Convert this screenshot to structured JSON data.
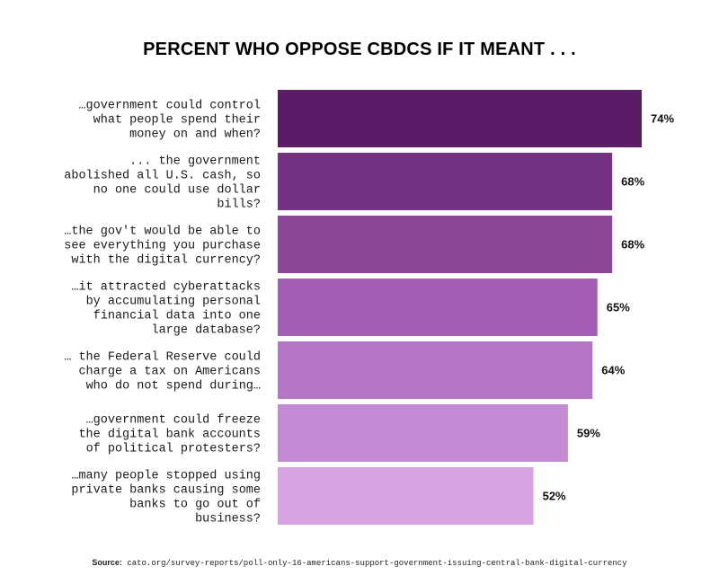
{
  "chart_data": {
    "type": "bar",
    "orientation": "horizontal",
    "title": "PERCENT WHO OPPOSE CBDCS IF IT MEANT . . .",
    "categories": [
      [
        "…government could control",
        "what people spend their",
        "money on and when?"
      ],
      [
        "... the government",
        "abolished all U.S. cash, so",
        "no one could use dollar",
        "bills?"
      ],
      [
        "…the gov't would be able to",
        "see everything you purchase",
        "with the digital currency?"
      ],
      [
        "…it attracted cyberattacks",
        "by accumulating personal",
        "financial data into one",
        "large database?"
      ],
      [
        "… the Federal Reserve could",
        "charge a tax on Americans",
        "who do not spend during…"
      ],
      [
        "…government could freeze",
        "the digital bank accounts",
        "of political protesters?"
      ],
      [
        "…many people stopped using",
        "private banks causing some",
        "banks to go out of",
        "business?"
      ]
    ],
    "values": [
      74,
      68,
      68,
      65,
      64,
      59,
      52
    ],
    "value_labels": [
      "74%",
      "68%",
      "68%",
      "65%",
      "64%",
      "59%",
      "52%"
    ],
    "colors": [
      "#5a1c66",
      "#743282",
      "#8a4897",
      "#a35eb6",
      "#b476c4",
      "#c48ad3",
      "#d8a2e3"
    ],
    "xlim": [
      0,
      74
    ],
    "grid": false,
    "legend": "none"
  },
  "source": {
    "prefix": "Source:",
    "text": "cato.org/survey-reports/poll-only-16-americans-support-government-issuing-central-bank-digital-currency"
  }
}
